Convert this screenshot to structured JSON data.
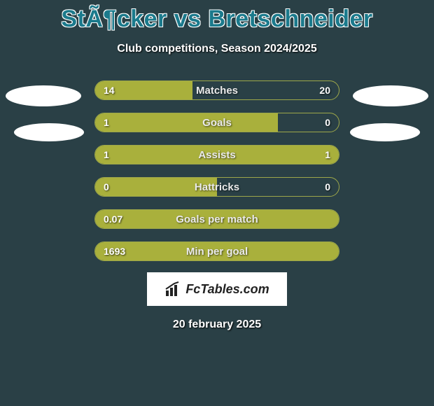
{
  "title": "StÃ¶cker vs Bretschneider",
  "subtitle": "Club competitions, Season 2024/2025",
  "date": "20 february 2025",
  "badge": {
    "text": "FcTables.com"
  },
  "colors": {
    "background": "#2a4046",
    "bar_fill": "#a9b03c",
    "bar_border": "#9da74a",
    "title_fill": "#1b7a8c"
  },
  "bars": [
    {
      "label": "Matches",
      "left": "14",
      "right": "20",
      "left_pct": 40,
      "right_pct": 0
    },
    {
      "label": "Goals",
      "left": "1",
      "right": "0",
      "left_pct": 75,
      "right_pct": 0
    },
    {
      "label": "Assists",
      "left": "1",
      "right": "1",
      "left_pct": 50,
      "right_pct": 50
    },
    {
      "label": "Hattricks",
      "left": "0",
      "right": "0",
      "left_pct": 50,
      "right_pct": 0
    },
    {
      "label": "Goals per match",
      "left": "0.07",
      "right": "",
      "left_pct": 100,
      "right_pct": 0
    },
    {
      "label": "Min per goal",
      "left": "1693",
      "right": "",
      "left_pct": 100,
      "right_pct": 0
    }
  ]
}
